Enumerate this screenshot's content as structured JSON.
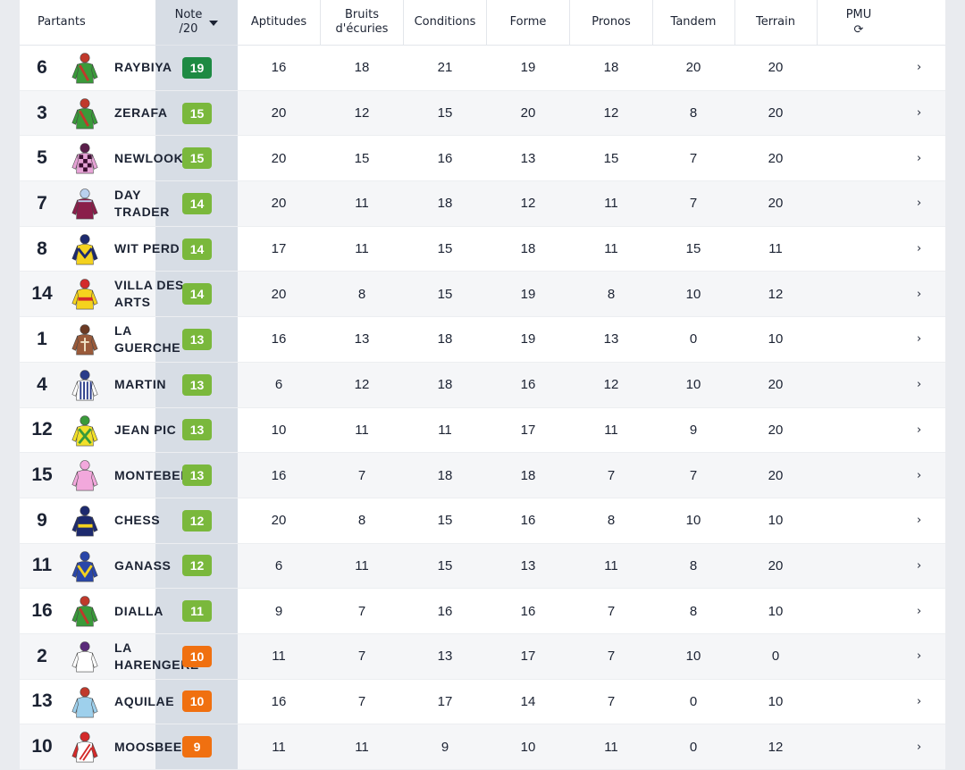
{
  "header": {
    "partants": "Partants",
    "note_line1": "Note",
    "note_line2": "/20",
    "aptitudes": "Aptitudes",
    "bruits_line1": "Bruits",
    "bruits_line2": "d'écuries",
    "conditions": "Conditions",
    "forme": "Forme",
    "pronos": "Pronos",
    "tandem": "Tandem",
    "terrain": "Terrain",
    "pmu": "PMU",
    "refresh_icon": "⟳"
  },
  "colors": {
    "note_column_bg": "#d7dde5",
    "badge_dark_green": "#1e8a43",
    "badge_green": "#7ab83c",
    "badge_orange": "#f07010"
  },
  "chevron": "›",
  "rows": [
    {
      "num": "6",
      "name": "RAYBIYA",
      "note": "19",
      "badge": "dark-green",
      "silk": "green",
      "aptitudes": "16",
      "bruits": "18",
      "conditions": "21",
      "forme": "19",
      "pronos": "18",
      "tandem": "20",
      "terrain": "20"
    },
    {
      "num": "3",
      "name": "ZERAFA",
      "note": "15",
      "badge": "green",
      "silk": "green",
      "aptitudes": "20",
      "bruits": "12",
      "conditions": "15",
      "forme": "20",
      "pronos": "12",
      "tandem": "8",
      "terrain": "20"
    },
    {
      "num": "5",
      "name": "NEWLOOK",
      "note": "15",
      "badge": "green",
      "silk": "pink-check",
      "aptitudes": "20",
      "bruits": "15",
      "conditions": "16",
      "forme": "13",
      "pronos": "15",
      "tandem": "7",
      "terrain": "20"
    },
    {
      "num": "7",
      "name": "DAY TRADER",
      "note": "14",
      "badge": "green",
      "silk": "maroon",
      "aptitudes": "20",
      "bruits": "11",
      "conditions": "18",
      "forme": "12",
      "pronos": "11",
      "tandem": "7",
      "terrain": "20"
    },
    {
      "num": "8",
      "name": "WIT PERD",
      "note": "14",
      "badge": "green",
      "silk": "yellow-navy",
      "aptitudes": "17",
      "bruits": "11",
      "conditions": "15",
      "forme": "18",
      "pronos": "11",
      "tandem": "15",
      "terrain": "11"
    },
    {
      "num": "14",
      "name": "VILLA DES ARTS",
      "note": "14",
      "badge": "green",
      "silk": "yellow-red",
      "aptitudes": "20",
      "bruits": "8",
      "conditions": "15",
      "forme": "19",
      "pronos": "8",
      "tandem": "10",
      "terrain": "12"
    },
    {
      "num": "1",
      "name": "LA GUERCHE",
      "note": "13",
      "badge": "green",
      "silk": "brown",
      "aptitudes": "16",
      "bruits": "13",
      "conditions": "18",
      "forme": "19",
      "pronos": "13",
      "tandem": "0",
      "terrain": "10"
    },
    {
      "num": "4",
      "name": "MARTIN",
      "note": "13",
      "badge": "green",
      "silk": "blue-stripe",
      "aptitudes": "6",
      "bruits": "12",
      "conditions": "18",
      "forme": "16",
      "pronos": "12",
      "tandem": "10",
      "terrain": "20"
    },
    {
      "num": "12",
      "name": "JEAN PIC",
      "note": "13",
      "badge": "green",
      "silk": "yellow-green",
      "aptitudes": "10",
      "bruits": "11",
      "conditions": "11",
      "forme": "17",
      "pronos": "11",
      "tandem": "9",
      "terrain": "20"
    },
    {
      "num": "15",
      "name": "MONTEBELLO",
      "note": "13",
      "badge": "green",
      "silk": "pink",
      "aptitudes": "16",
      "bruits": "7",
      "conditions": "18",
      "forme": "18",
      "pronos": "7",
      "tandem": "7",
      "terrain": "20"
    },
    {
      "num": "9",
      "name": "CHESS",
      "note": "12",
      "badge": "green",
      "silk": "navy-yellow",
      "aptitudes": "20",
      "bruits": "8",
      "conditions": "15",
      "forme": "16",
      "pronos": "8",
      "tandem": "10",
      "terrain": "10"
    },
    {
      "num": "11",
      "name": "GANASS",
      "note": "12",
      "badge": "green",
      "silk": "royal",
      "aptitudes": "6",
      "bruits": "11",
      "conditions": "15",
      "forme": "13",
      "pronos": "11",
      "tandem": "8",
      "terrain": "20"
    },
    {
      "num": "16",
      "name": "DIALLA",
      "note": "11",
      "badge": "green",
      "silk": "green",
      "aptitudes": "9",
      "bruits": "7",
      "conditions": "16",
      "forme": "16",
      "pronos": "7",
      "tandem": "8",
      "terrain": "10"
    },
    {
      "num": "2",
      "name": "LA HARENGERE",
      "note": "10",
      "badge": "orange",
      "silk": "white",
      "aptitudes": "11",
      "bruits": "7",
      "conditions": "13",
      "forme": "17",
      "pronos": "7",
      "tandem": "10",
      "terrain": "0"
    },
    {
      "num": "13",
      "name": "AQUILAE",
      "note": "10",
      "badge": "orange",
      "silk": "lightblue",
      "aptitudes": "16",
      "bruits": "7",
      "conditions": "17",
      "forme": "14",
      "pronos": "7",
      "tandem": "0",
      "terrain": "10"
    },
    {
      "num": "10",
      "name": "MOOSBEE",
      "note": "9",
      "badge": "orange",
      "silk": "red-white",
      "aptitudes": "11",
      "bruits": "11",
      "conditions": "9",
      "forme": "10",
      "pronos": "11",
      "tandem": "0",
      "terrain": "12"
    }
  ]
}
